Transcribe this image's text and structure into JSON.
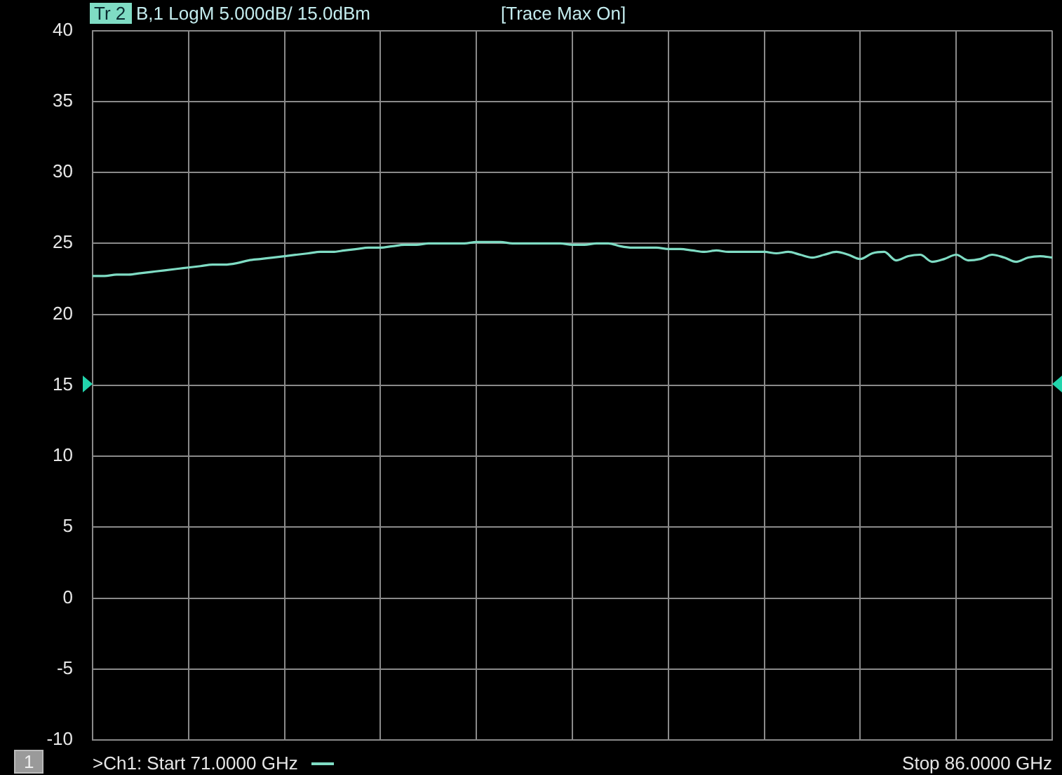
{
  "chart_data": {
    "type": "line",
    "annotations": [
      "Tr 2",
      "B,1 LogM 5.000dB/ 15.0dBm",
      "[Trace Max On]",
      "1",
      ">Ch1: Start 71.0000 GHz",
      "Stop 86.0000 GHz"
    ],
    "categories": [
      null,
      null,
      null,
      null,
      null,
      null,
      null,
      null,
      null,
      null,
      null,
      null,
      null,
      null,
      null,
      null,
      null,
      null,
      null,
      null,
      null,
      null,
      null,
      null,
      null,
      null,
      null,
      null,
      null,
      null,
      null,
      null,
      null,
      null,
      null,
      null,
      null,
      null,
      null,
      null,
      null,
      null,
      null,
      null,
      null,
      null,
      null,
      null,
      null,
      null,
      null,
      null,
      null,
      null,
      null,
      null,
      null,
      null,
      null,
      null,
      null,
      null,
      null,
      null,
      null,
      null,
      null,
      null,
      null,
      null,
      null,
      null,
      null,
      null,
      null,
      null,
      null,
      null,
      null,
      null,
      null
    ],
    "series": [
      {
        "color": "#7fdcc4",
        "values": [
          22.7,
          22.7,
          22.8,
          22.8,
          22.9,
          23.0,
          23.1,
          23.2,
          23.3,
          23.4,
          23.5,
          23.5,
          23.6,
          23.8,
          23.9,
          24.0,
          24.1,
          24.2,
          24.3,
          24.4,
          24.4,
          24.5,
          24.6,
          24.7,
          24.7,
          24.8,
          24.9,
          24.9,
          25.0,
          25.0,
          25.0,
          25.0,
          25.1,
          25.1,
          25.1,
          25.0,
          25.0,
          25.0,
          25.0,
          25.0,
          24.9,
          24.9,
          25.0,
          25.0,
          24.8,
          24.7,
          24.7,
          24.7,
          24.6,
          24.6,
          24.5,
          24.4,
          24.5,
          24.4,
          24.4,
          24.4,
          24.4,
          24.3,
          24.4,
          24.2,
          24.0,
          24.2,
          24.4,
          24.2,
          23.9,
          24.3,
          24.4,
          23.8,
          24.1,
          24.2,
          23.7,
          23.9,
          24.2,
          23.8,
          23.9,
          24.2,
          24.0,
          23.7,
          24.0,
          24.1,
          24.0
        ]
      }
    ],
    "ylim": [
      -10,
      40
    ],
    "yticks": [
      -10,
      -5,
      0,
      5,
      10,
      15,
      20,
      25,
      30,
      35,
      40
    ],
    "tick_labels": "y",
    "grid": true,
    "marker": "none",
    "line_style": "solid"
  }
}
